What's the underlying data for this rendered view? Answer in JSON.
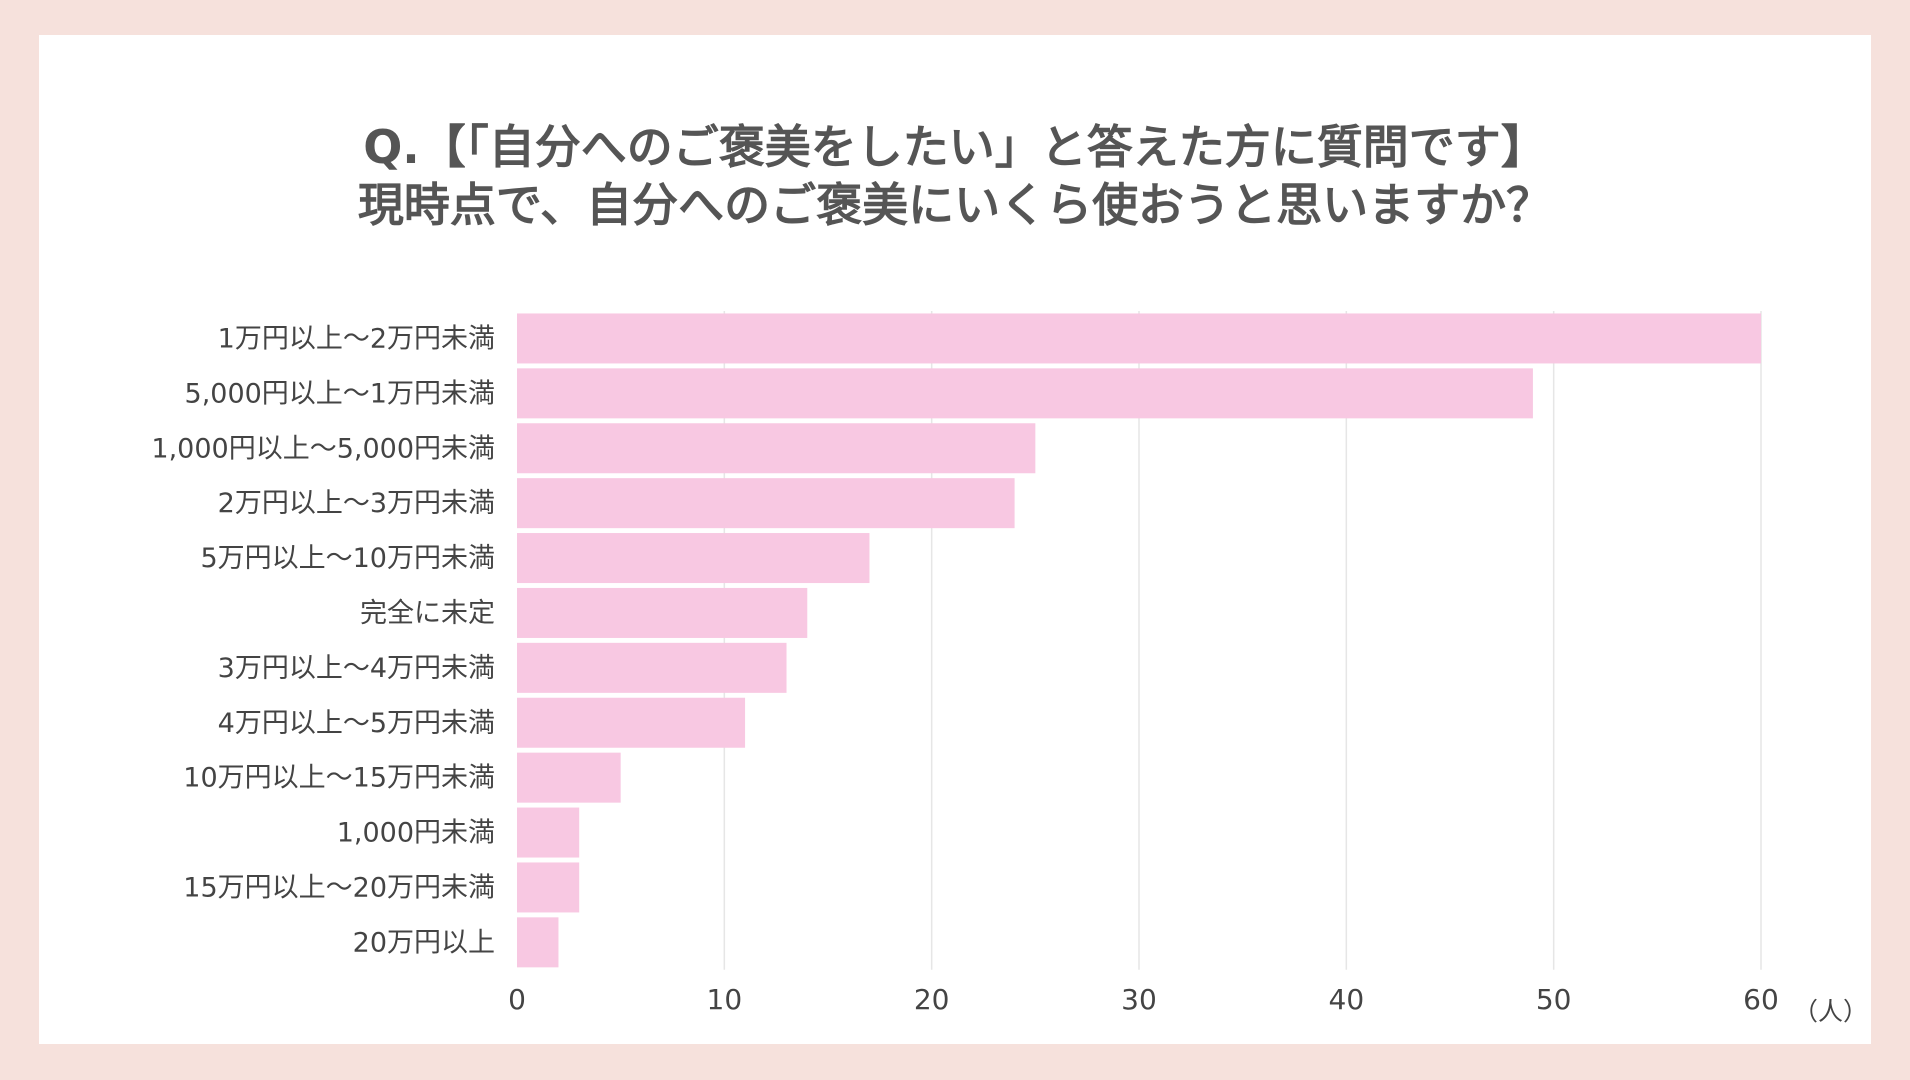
{
  "title": {
    "line1": "Q.【「自分へのご褒美をしたい」と答えた方に質問です】",
    "line2": "現時点で、自分へのご褒美にいくら使おうと思いますか？"
  },
  "colors": {
    "background": "#f6e1dc",
    "panel": "#ffffff",
    "bar": "#f8c8e2",
    "grid": "#e6e6e6",
    "text": "#444444",
    "title": "#555555"
  },
  "chart_data": {
    "type": "bar",
    "orientation": "horizontal",
    "title": "Q.【「自分へのご褒美をしたい」と答えた方に質問です】 現時点で、自分へのご褒美にいくら使おうと思いますか？",
    "categories": [
      "1万円以上〜2万円未満",
      "5,000円以上〜1万円未満",
      "1,000円以上〜5,000円未満",
      "2万円以上〜3万円未満",
      "5万円以上〜10万円未満",
      "完全に未定",
      "3万円以上〜4万円未満",
      "4万円以上〜5万円未満",
      "10万円以上〜15万円未満",
      "1,000円未満",
      "15万円以上〜20万円未満",
      "20万円以上"
    ],
    "values": [
      60,
      49,
      25,
      24,
      17,
      14,
      13,
      11,
      5,
      3,
      3,
      2
    ],
    "xlim": [
      0,
      60
    ],
    "xticks": [
      0,
      10,
      20,
      30,
      40,
      50,
      60
    ],
    "xunit": "（人）",
    "grid": true
  }
}
